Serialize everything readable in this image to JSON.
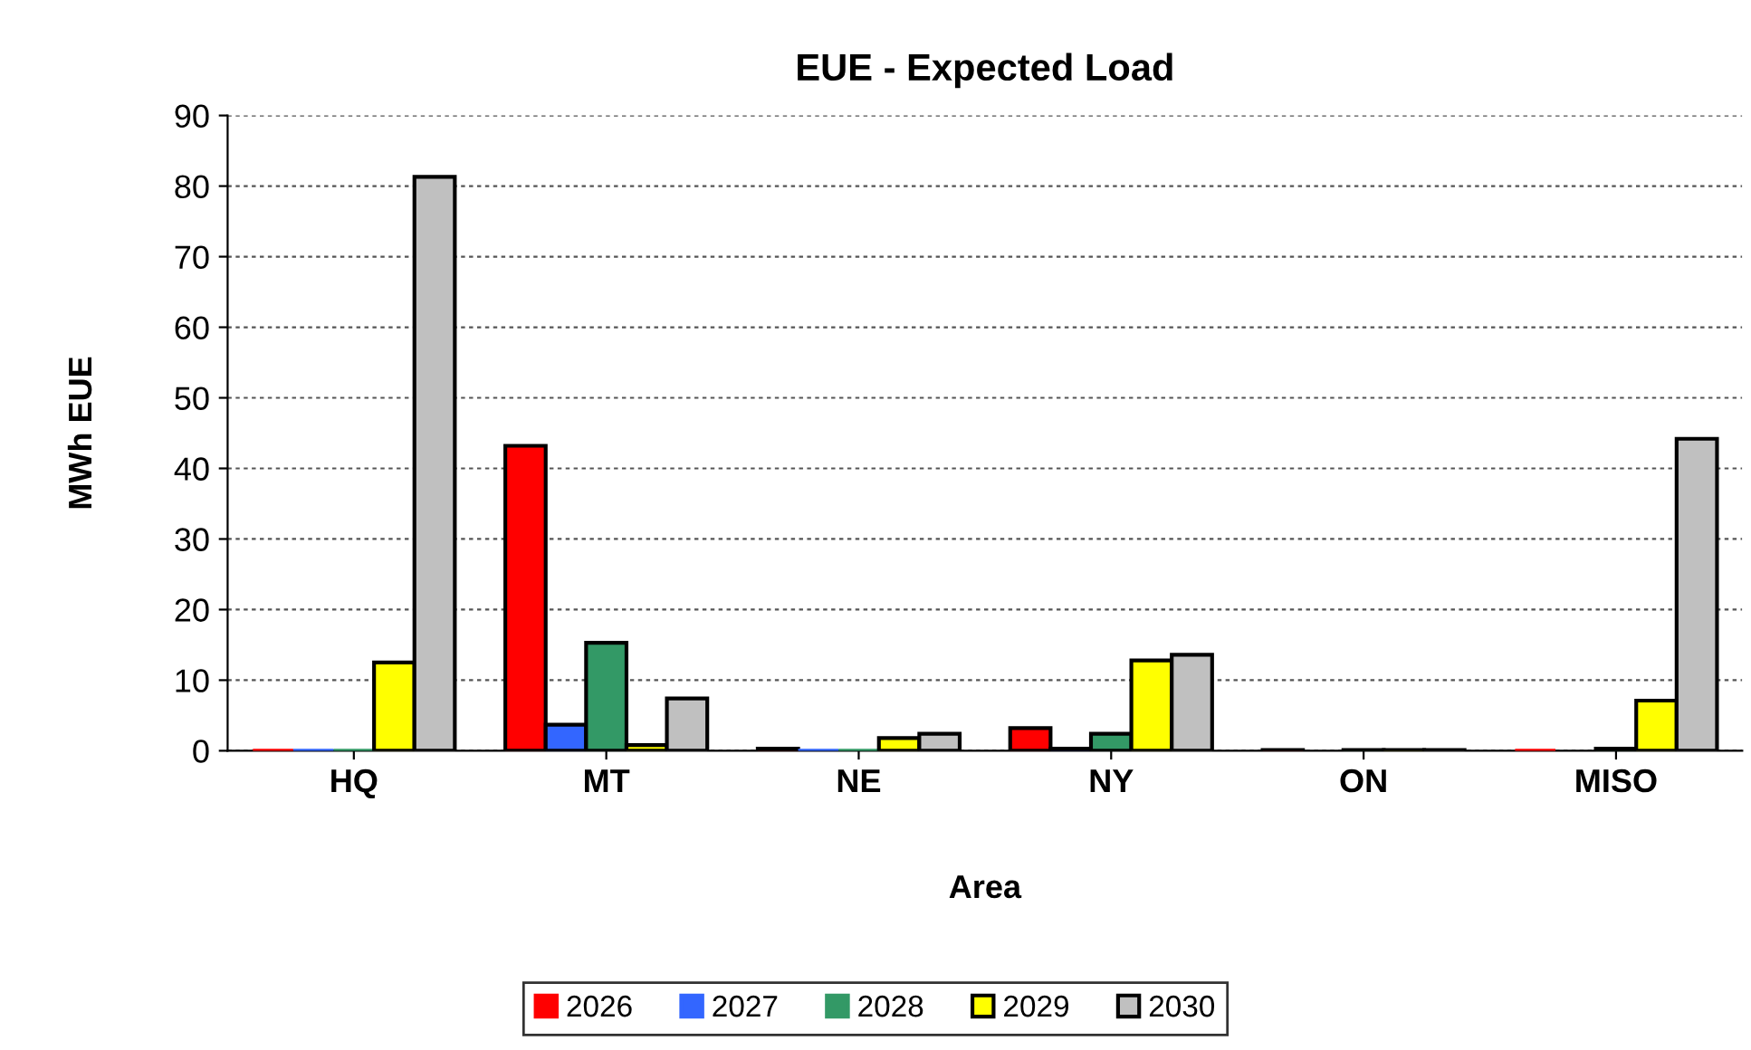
{
  "chart_data": {
    "type": "bar",
    "title": "EUE - Expected Load",
    "xlabel": "Area",
    "ylabel": "MWh EUE",
    "categories": [
      "HQ",
      "MT",
      "NE",
      "NY",
      "ON",
      "MISO"
    ],
    "series": [
      {
        "name": "2026",
        "color": "#ff0000",
        "values": [
          0,
          43.2,
          0.3,
          3.2,
          0.1,
          0
        ]
      },
      {
        "name": "2027",
        "color": "#3366ff",
        "values": [
          0,
          3.7,
          0,
          0.3,
          null,
          null
        ]
      },
      {
        "name": "2028",
        "color": "#339966",
        "values": [
          0,
          15.3,
          0,
          2.4,
          0.1,
          0.3
        ]
      },
      {
        "name": "2029",
        "color": "#ffff00",
        "values": [
          12.5,
          0.8,
          1.8,
          12.8,
          0.1,
          7.1
        ]
      },
      {
        "name": "2030",
        "color": "#c0c0c0",
        "values": [
          81.3,
          7.4,
          2.4,
          13.6,
          0.1,
          44.2
        ]
      }
    ],
    "ylim": [
      0,
      90
    ],
    "yticks": [
      0,
      10,
      20,
      30,
      40,
      50,
      60,
      70,
      80,
      90
    ],
    "grid": "y",
    "legend": "bottom"
  }
}
